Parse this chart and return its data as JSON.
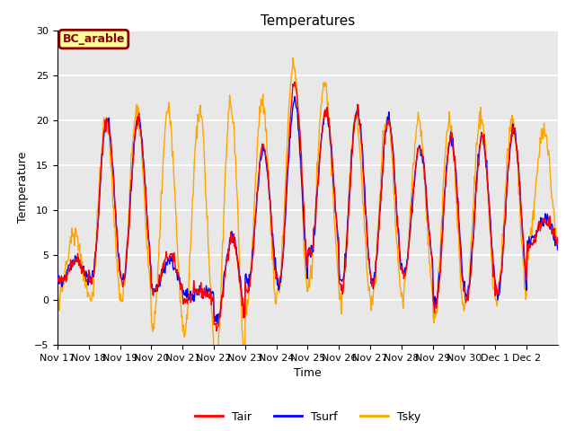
{
  "title": "Temperatures",
  "xlabel": "Time",
  "ylabel": "Temperature",
  "ylim": [
    -5,
    30
  ],
  "yticks": [
    -5,
    0,
    5,
    10,
    15,
    20,
    25,
    30
  ],
  "legend_label": "BC_arable",
  "legend_box_color": "#ffff99",
  "legend_box_edge": "#8B0000",
  "line_labels": [
    "Tair",
    "Tsurf",
    "Tsky"
  ],
  "line_colors": [
    "red",
    "blue",
    "orange"
  ],
  "background_color": "#e8e8e8",
  "grid_color": "white",
  "title_fontsize": 11,
  "axis_label_fontsize": 9,
  "tick_label_fontsize": 8,
  "x_tick_labels": [
    "Nov 17",
    "Nov 18",
    "Nov 19",
    "Nov 20",
    "Nov 21",
    "Nov 22",
    "Nov 23",
    "Nov 24",
    "Nov 25",
    "Nov 26",
    "Nov 27",
    "Nov 28",
    "Nov 29",
    "Nov 30",
    "Dec 1",
    "Dec 2"
  ],
  "n_days": 16,
  "pts_per_day": 48,
  "day_peaks": [
    4.5,
    20,
    20,
    5,
    1,
    7,
    17,
    24,
    21,
    21,
    20,
    17,
    18,
    18,
    19,
    9
  ],
  "day_troughs": [
    2,
    2,
    2,
    1,
    0,
    -3,
    1,
    2,
    5,
    1,
    2,
    3,
    -1,
    0,
    1,
    6
  ],
  "tsurf_peak_offset": [
    0,
    0,
    0,
    -0.5,
    0,
    0,
    -0.5,
    -2,
    0,
    0,
    0,
    0,
    0,
    0,
    0,
    0
  ],
  "tsurf_trough_offset": [
    0,
    0,
    0,
    0,
    0.5,
    0.5,
    1,
    -0.5,
    0,
    1,
    0,
    0,
    1,
    0.5,
    -0.5,
    0
  ],
  "tsky_peak_offset": [
    3,
    0,
    1,
    16,
    20,
    15,
    5,
    2,
    3,
    -1,
    0.5,
    3,
    2,
    2.5,
    1,
    10
  ],
  "tsky_trough_offset": [
    -1.5,
    -2,
    -2,
    -4,
    -4,
    -5,
    -2,
    -1.5,
    -3,
    -1,
    -2,
    -2.5,
    -1,
    -0.5,
    -1,
    0
  ],
  "peak_hour": 14,
  "noise_seed": 42,
  "tair_noise": 0.4,
  "tsurf_noise": 0.4,
  "tsky_noise": 0.6
}
